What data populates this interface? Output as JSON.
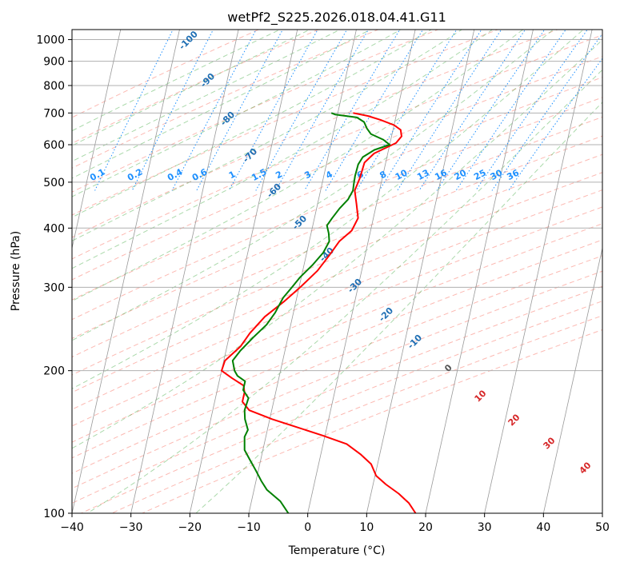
{
  "chart_data": {
    "type": "line",
    "subtype": "skew-T log-P",
    "title": "wetPf2_S225.2026.018.04.41.G11",
    "xlabel": "Temperature (°C)",
    "ylabel": "Pressure (hPa)",
    "xlim": [
      -40,
      50
    ],
    "ylim": [
      1050,
      100
    ],
    "y_scale": "log",
    "x_ticks": [
      -40,
      -30,
      -20,
      -10,
      0,
      10,
      20,
      30,
      40,
      50
    ],
    "y_ticks": [
      100,
      200,
      300,
      400,
      500,
      600,
      700,
      800,
      900,
      1000
    ],
    "grid": true,
    "colors": {
      "temperature": "#ff0000",
      "dewpoint": "#008000",
      "isotherm_label": "#1f6fb4",
      "mixing_ratio": "#1e90ff",
      "dry_adiabat": "#fa8072",
      "moist_adiabat": "#2ca02c",
      "wetbulb_label": "#d62728"
    },
    "series": [
      {
        "name": "",
        "color": "#ff0000",
        "points": [
          [
            -7.4,
            700
          ],
          [
            -4.8,
            690
          ],
          [
            -2.5,
            677
          ],
          [
            0.0,
            660
          ],
          [
            1.3,
            645
          ],
          [
            1.7,
            625
          ],
          [
            1.0,
            605
          ],
          [
            -2.3,
            575
          ],
          [
            -3.6,
            550
          ],
          [
            -3.8,
            510
          ],
          [
            -4.2,
            480
          ],
          [
            -3.4,
            450
          ],
          [
            -2.6,
            420
          ],
          [
            -3.2,
            395
          ],
          [
            -4.9,
            375
          ],
          [
            -6.1,
            350
          ],
          [
            -7.5,
            325
          ],
          [
            -9.8,
            300
          ],
          [
            -12.0,
            280
          ],
          [
            -14.7,
            260
          ],
          [
            -16.6,
            240
          ],
          [
            -17.7,
            225
          ],
          [
            -19.8,
            210
          ],
          [
            -20.0,
            200
          ],
          [
            -18.0,
            193
          ],
          [
            -15.7,
            186
          ],
          [
            -15.3,
            180
          ],
          [
            -15.3,
            172
          ],
          [
            -13.8,
            165
          ],
          [
            -9.6,
            158
          ],
          [
            -5.1,
            152
          ],
          [
            -0.5,
            146
          ],
          [
            4.0,
            140
          ],
          [
            6.8,
            133
          ],
          [
            8.9,
            127
          ],
          [
            10.2,
            120
          ],
          [
            12.2,
            115
          ],
          [
            14.7,
            110
          ],
          [
            16.8,
            105
          ],
          [
            18.3,
            100
          ]
        ]
      },
      {
        "name": "",
        "color": "#008000",
        "points": [
          [
            -11.1,
            700
          ],
          [
            -10.4,
            695
          ],
          [
            -6.6,
            685
          ],
          [
            -5.2,
            670
          ],
          [
            -4.5,
            650
          ],
          [
            -3.6,
            632
          ],
          [
            -1.3,
            615
          ],
          [
            0.0,
            600
          ],
          [
            -2.4,
            585
          ],
          [
            -4.1,
            565
          ],
          [
            -4.6,
            545
          ],
          [
            -4.7,
            515
          ],
          [
            -4.6,
            495
          ],
          [
            -4.5,
            480
          ],
          [
            -5.0,
            460
          ],
          [
            -6.1,
            440
          ],
          [
            -7.0,
            420
          ],
          [
            -7.6,
            405
          ],
          [
            -7.0,
            390
          ],
          [
            -6.6,
            375
          ],
          [
            -7.2,
            355
          ],
          [
            -8.5,
            335
          ],
          [
            -10.2,
            315
          ],
          [
            -11.2,
            300
          ],
          [
            -12.3,
            285
          ],
          [
            -13.1,
            265
          ],
          [
            -14.1,
            250
          ],
          [
            -15.9,
            235
          ],
          [
            -17.6,
            220
          ],
          [
            -18.5,
            210
          ],
          [
            -17.8,
            200
          ],
          [
            -17.1,
            195
          ],
          [
            -15.6,
            190
          ],
          [
            -15.6,
            182
          ],
          [
            -14.4,
            175
          ],
          [
            -14.6,
            165
          ],
          [
            -14.2,
            158
          ],
          [
            -13.3,
            150
          ],
          [
            -13.6,
            145
          ],
          [
            -13.1,
            136
          ],
          [
            -11.9,
            130
          ],
          [
            -10.4,
            123
          ],
          [
            -9.1,
            117
          ],
          [
            -7.8,
            112
          ],
          [
            -5.1,
            106
          ],
          [
            -3.3,
            100
          ]
        ]
      }
    ],
    "isotherm_labels": [
      "-100",
      "-90",
      "-80",
      "-70",
      "-60",
      "-50",
      "-40",
      "-30",
      "-20",
      "-10"
    ],
    "mixing_ratio_labels": [
      "0.1",
      "0.2",
      "0.4",
      "0.6",
      "1",
      "1.5",
      "2",
      "3",
      "4",
      "6",
      "8",
      "10",
      "13",
      "16",
      "20",
      "25",
      "30",
      "36"
    ],
    "wetbulb_labels": [
      "0",
      "10",
      "20",
      "30",
      "40"
    ]
  }
}
